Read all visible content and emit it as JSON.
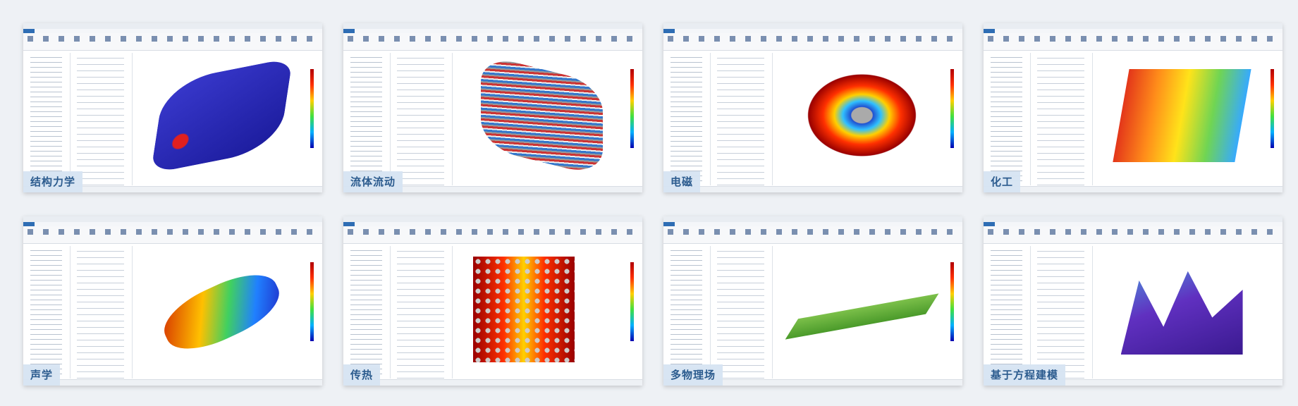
{
  "cards": [
    {
      "label": "结构力学"
    },
    {
      "label": "流体流动"
    },
    {
      "label": "电磁"
    },
    {
      "label": "化工"
    },
    {
      "label": "声学"
    },
    {
      "label": "传热"
    },
    {
      "label": "多物理场"
    },
    {
      "label": "基于方程建模"
    }
  ]
}
